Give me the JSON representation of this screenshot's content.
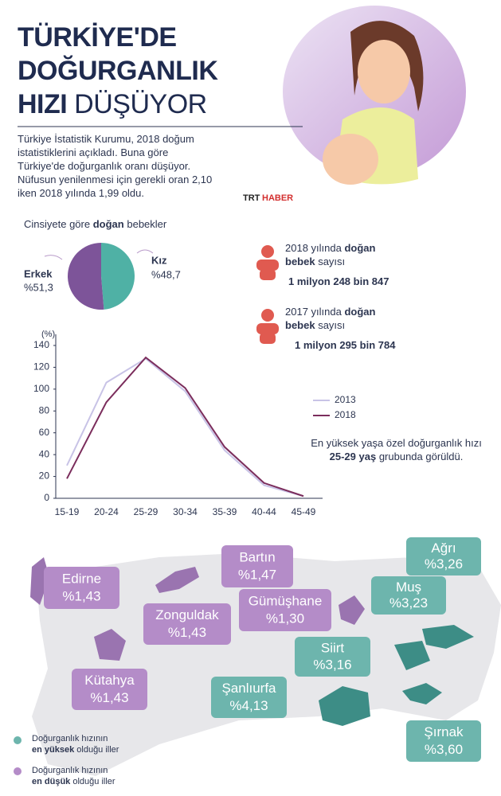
{
  "header": {
    "title_lines": [
      "TÜRKİYE'DE",
      "DOĞURGANLIK",
      "HIZI",
      "DÜŞÜYOR"
    ],
    "intro": "Türkiye İstatistik Kurumu, 2018 doğum istatistiklerini açıkladı. Buna göre Türkiye'de doğurganlık oranı düşüyor. Nüfusun yenilenmesi için gerekli oran 2,10 iken 2018 yılında 1,99 oldu."
  },
  "logo": {
    "brand": [
      "TRT",
      "HABER"
    ]
  },
  "chart_data": [
    {
      "type": "pie",
      "title_parts": [
        "Cinsiyete göre",
        "doğan",
        "bebekler"
      ],
      "categories": [
        "Erkek",
        "Kız"
      ],
      "values": [
        51.3,
        48.7
      ],
      "value_labels": [
        "%51,3",
        "%48,7"
      ],
      "colors": [
        "#7d5499",
        "#4fb1a5"
      ]
    },
    {
      "type": "line",
      "y_label": "(%)",
      "categories": [
        "15-19",
        "20-24",
        "25-29",
        "30-34",
        "35-39",
        "40-44",
        "45-49"
      ],
      "series": [
        {
          "name": "2013",
          "color": "#c8c3e6",
          "values": [
            30,
            106,
            128,
            98,
            44,
            12,
            2
          ]
        },
        {
          "name": "2018",
          "color": "#7b2d5c",
          "values": [
            18,
            88,
            129,
            101,
            47,
            14,
            2
          ]
        }
      ],
      "ylim": [
        0,
        140
      ],
      "yticks": [
        0,
        20,
        40,
        60,
        80,
        100,
        120,
        140
      ]
    }
  ],
  "births": [
    {
      "label_parts": [
        "2018 yılında",
        "doğan",
        "bebek",
        "sayısı"
      ],
      "count": "1 milyon 248 bin 847"
    },
    {
      "label_parts": [
        "2017 yılında",
        "doğan",
        "bebek",
        "sayısı"
      ],
      "count": "1 milyon 295 bin 784"
    }
  ],
  "note_parts": [
    "En yüksek yaşa özel doğurganlık hızı",
    "25-29 yaş",
    "grubunda görüldü."
  ],
  "map": {
    "highest": [
      {
        "name": "Ağrı",
        "value": "%3,26"
      },
      {
        "name": "Muş",
        "value": "%3,23"
      },
      {
        "name": "Siirt",
        "value": "%3,16"
      },
      {
        "name": "Şanlıurfa",
        "value": "%4,13"
      },
      {
        "name": "Şırnak",
        "value": "%3,60"
      }
    ],
    "lowest": [
      {
        "name": "Edirne",
        "value": "%1,43"
      },
      {
        "name": "Bartın",
        "value": "%1,47"
      },
      {
        "name": "Zonguldak",
        "value": "%1,43"
      },
      {
        "name": "Gümüşhane",
        "value": "%1,30"
      },
      {
        "name": "Kütahya",
        "value": "%1,43"
      }
    ]
  },
  "legend": [
    {
      "parts": [
        "Doğurganlık hızının",
        "en yüksek",
        "olduğu iller"
      ]
    },
    {
      "parts": [
        "Doğurganlık hızının",
        "en düşük",
        "olduğu iller"
      ]
    }
  ]
}
